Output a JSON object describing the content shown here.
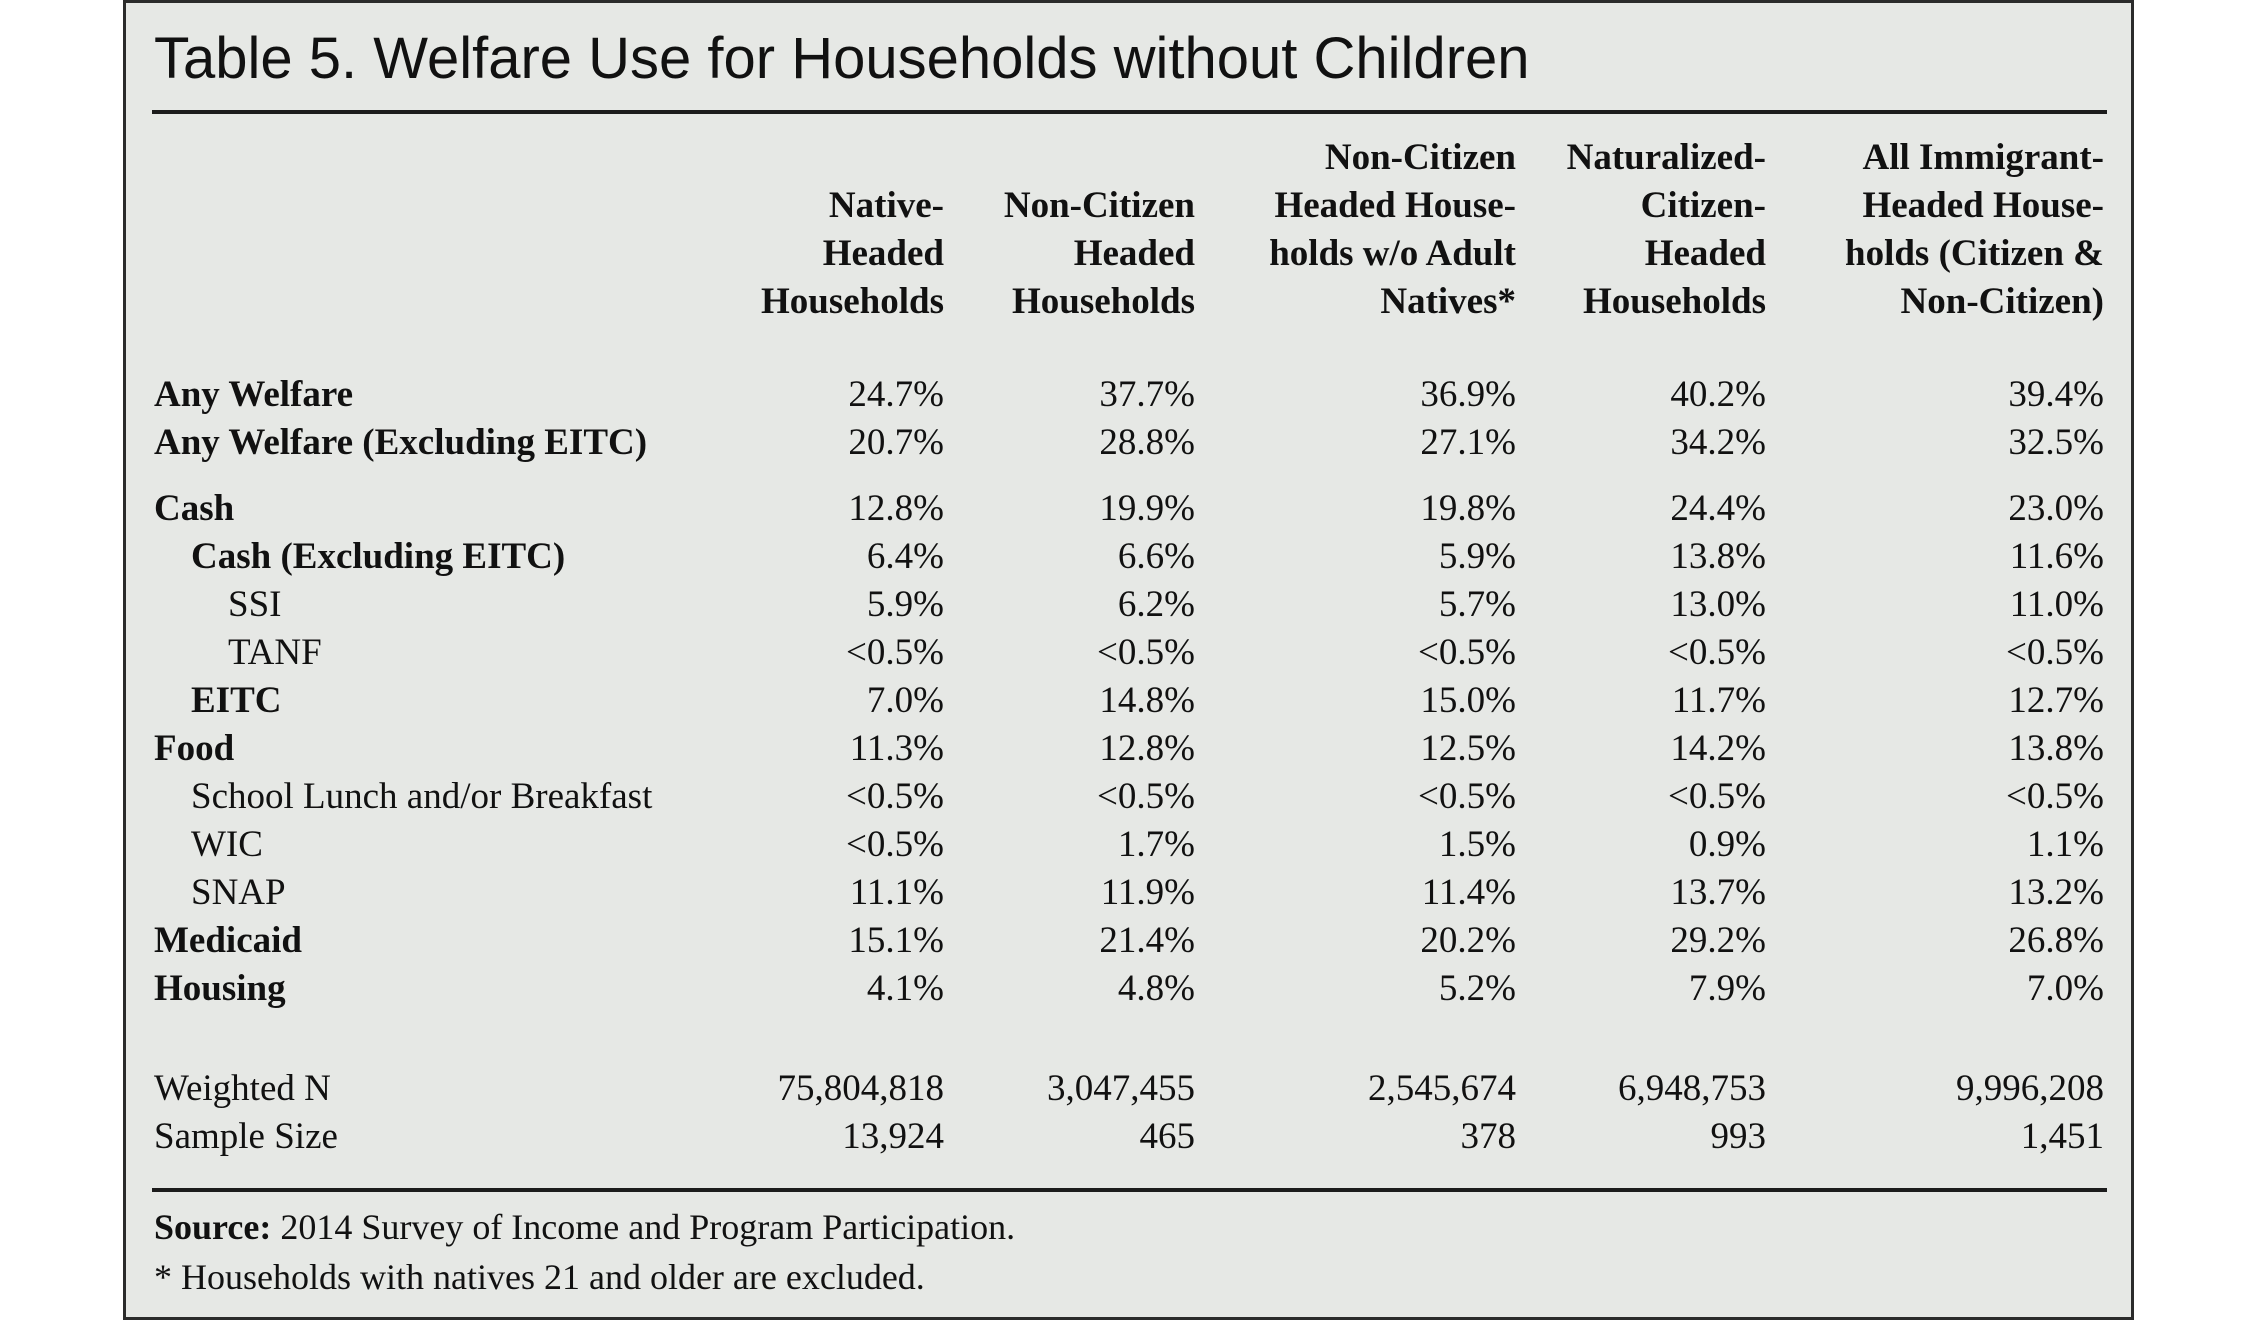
{
  "title": "Table 5. Welfare Use for Households without Children",
  "columns": [
    "Native-\nHeaded\nHouseholds",
    "Non-Citizen\nHeaded\nHouseholds",
    "Non-Citizen\nHeaded House-\nholds w/o Adult\nNatives*",
    "Naturalized-\nCitizen-\nHeaded\nHouseholds",
    "All Immigrant-\nHeaded House-\nholds (Citizen &\nNon-Citizen)"
  ],
  "rows": [
    {
      "label": "Any Welfare",
      "bold": true,
      "indent": 0,
      "values": [
        "24.7%",
        "37.7%",
        "36.9%",
        "40.2%",
        "39.4%"
      ]
    },
    {
      "label": "Any Welfare (Excluding EITC)",
      "bold": true,
      "indent": 0,
      "values": [
        "20.7%",
        "28.8%",
        "27.1%",
        "34.2%",
        "32.5%"
      ]
    },
    {
      "label": "Cash",
      "bold": true,
      "indent": 0,
      "values": [
        "12.8%",
        "19.9%",
        "19.8%",
        "24.4%",
        "23.0%"
      ]
    },
    {
      "label": "Cash (Excluding EITC)",
      "bold": true,
      "indent": 1,
      "values": [
        "6.4%",
        "6.6%",
        "5.9%",
        "13.8%",
        "11.6%"
      ]
    },
    {
      "label": "SSI",
      "bold": false,
      "indent": 2,
      "values": [
        "5.9%",
        "6.2%",
        "5.7%",
        "13.0%",
        "11.0%"
      ]
    },
    {
      "label": "TANF",
      "bold": false,
      "indent": 2,
      "values": [
        "<0.5%",
        "<0.5%",
        "<0.5%",
        "<0.5%",
        "<0.5%"
      ]
    },
    {
      "label": "EITC",
      "bold": true,
      "indent": 1,
      "values": [
        "7.0%",
        "14.8%",
        "15.0%",
        "11.7%",
        "12.7%"
      ]
    },
    {
      "label": "Food",
      "bold": true,
      "indent": 0,
      "values": [
        "11.3%",
        "12.8%",
        "12.5%",
        "14.2%",
        "13.8%"
      ]
    },
    {
      "label": "School Lunch and/or Breakfast",
      "bold": false,
      "indent": 1,
      "values": [
        "<0.5%",
        "<0.5%",
        "<0.5%",
        "<0.5%",
        "<0.5%"
      ]
    },
    {
      "label": "WIC",
      "bold": false,
      "indent": 1,
      "values": [
        "<0.5%",
        "1.7%",
        "1.5%",
        "0.9%",
        "1.1%"
      ]
    },
    {
      "label": "SNAP",
      "bold": false,
      "indent": 1,
      "values": [
        "11.1%",
        "11.9%",
        "11.4%",
        "13.7%",
        "13.2%"
      ]
    },
    {
      "label": "Medicaid",
      "bold": true,
      "indent": 0,
      "values": [
        "15.1%",
        "21.4%",
        "20.2%",
        "29.2%",
        "26.8%"
      ]
    },
    {
      "label": "Housing",
      "bold": true,
      "indent": 0,
      "values": [
        "4.1%",
        "4.8%",
        "5.2%",
        "7.9%",
        "7.0%"
      ]
    },
    {
      "label": "Weighted N",
      "bold": false,
      "indent": 0,
      "values": [
        "75,804,818",
        "3,047,455",
        "2,545,674",
        "6,948,753",
        "9,996,208"
      ]
    },
    {
      "label": "Sample Size",
      "bold": false,
      "indent": 0,
      "values": [
        "13,924",
        "465",
        "378",
        "993",
        "1,451"
      ]
    }
  ],
  "footer": {
    "source_label": "Source:",
    "source_text": " 2014 Survey of Income and Program Participation.",
    "note": "* Households with natives 21 and older are excluded."
  }
}
